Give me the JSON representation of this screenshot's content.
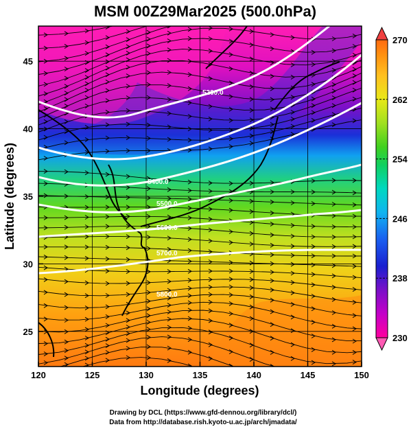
{
  "title": "MSM 00Z29Mar2025 (500.0hPa)",
  "xlabel": "Longitude (degrees)",
  "ylabel": "Latitude  (degrees)",
  "credits": [
    "Drawing by DCL (https://www.gfd-dennou.org/library/dcl/)",
    "Data from http://database.rish.kyoto-u.ac.jp/arch/jmadata/"
  ],
  "map": {
    "lon_range": [
      120,
      150
    ],
    "lat_range": [
      22.4,
      47.6
    ],
    "lon_ticks": [
      120,
      125,
      130,
      135,
      140,
      145,
      150
    ],
    "lat_ticks": [
      25,
      30,
      35,
      40,
      45
    ],
    "grid": true,
    "layers": [
      "temperature shading",
      "geopotential height contours",
      "wind streamlines",
      "coastlines"
    ]
  },
  "colorbar": {
    "min": 230,
    "max": 270,
    "ticks": [
      270,
      262,
      254,
      246,
      238,
      230
    ],
    "placement": "right",
    "colors": [
      "#ff009e",
      "#c400c8",
      "#7a10c8",
      "#1a20d0",
      "#1a5ff0",
      "#10b4f0",
      "#00d8c0",
      "#10d060",
      "#40d020",
      "#a0e020",
      "#e8e818",
      "#ffc020",
      "#ff9010",
      "#ff6a10",
      "#f02820"
    ]
  },
  "contours": [
    {
      "value": "5200.0"
    },
    {
      "value": "5400.0"
    },
    {
      "value": "5500.0"
    },
    {
      "value": "5600.0"
    },
    {
      "value": "5700.0"
    },
    {
      "value": "5800.0"
    }
  ]
}
